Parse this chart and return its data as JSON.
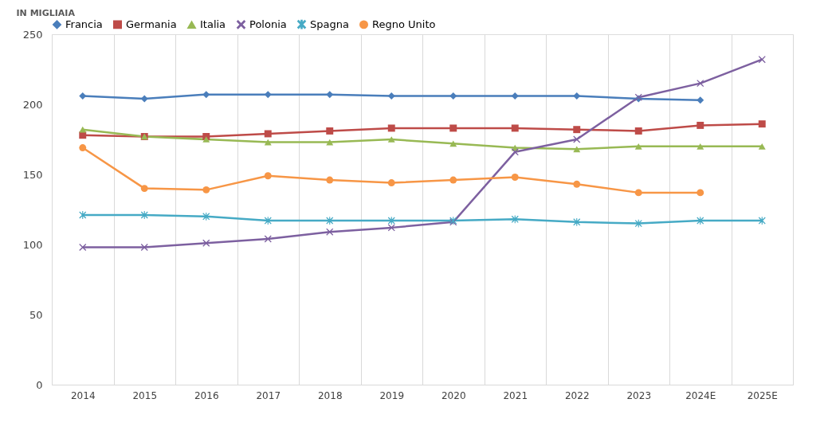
{
  "chart_data": {
    "type": "line",
    "ylabel": "IN MIGLIAIA",
    "categories": [
      "2014",
      "2015",
      "2016",
      "2017",
      "2018",
      "2019",
      "2020",
      "2021",
      "2022",
      "2023",
      "2024E",
      "2025E"
    ],
    "series": [
      {
        "name": "Francia",
        "color": "#4a7ebb",
        "marker": "diamond",
        "values": [
          206,
          204,
          207,
          207,
          207,
          206,
          206,
          206,
          206,
          204,
          203,
          null
        ]
      },
      {
        "name": "Germania",
        "color": "#be4b48",
        "marker": "square",
        "values": [
          178,
          177,
          177,
          179,
          181,
          183,
          183,
          183,
          182,
          181,
          185,
          186
        ]
      },
      {
        "name": "Italia",
        "color": "#98b954",
        "marker": "triangle",
        "values": [
          182,
          177,
          175,
          173,
          173,
          175,
          172,
          169,
          168,
          170,
          170,
          170
        ]
      },
      {
        "name": "Polonia",
        "color": "#7d60a0",
        "marker": "cross",
        "values": [
          98,
          98,
          101,
          104,
          109,
          112,
          116,
          166,
          175,
          205,
          215,
          232
        ]
      },
      {
        "name": "Spagna",
        "color": "#46aac5",
        "marker": "star",
        "values": [
          121,
          121,
          120,
          117,
          117,
          117,
          117,
          118,
          116,
          115,
          117,
          117
        ]
      },
      {
        "name": "Regno Unito",
        "color": "#f79646",
        "marker": "circle",
        "values": [
          169,
          140,
          139,
          149,
          146,
          144,
          146,
          148,
          143,
          137,
          137,
          null
        ]
      }
    ],
    "ylim": [
      0,
      250
    ],
    "yticks": [
      0,
      50,
      100,
      150,
      200,
      250
    ],
    "grid": "x",
    "legend": "top",
    "line_style": "solid"
  }
}
